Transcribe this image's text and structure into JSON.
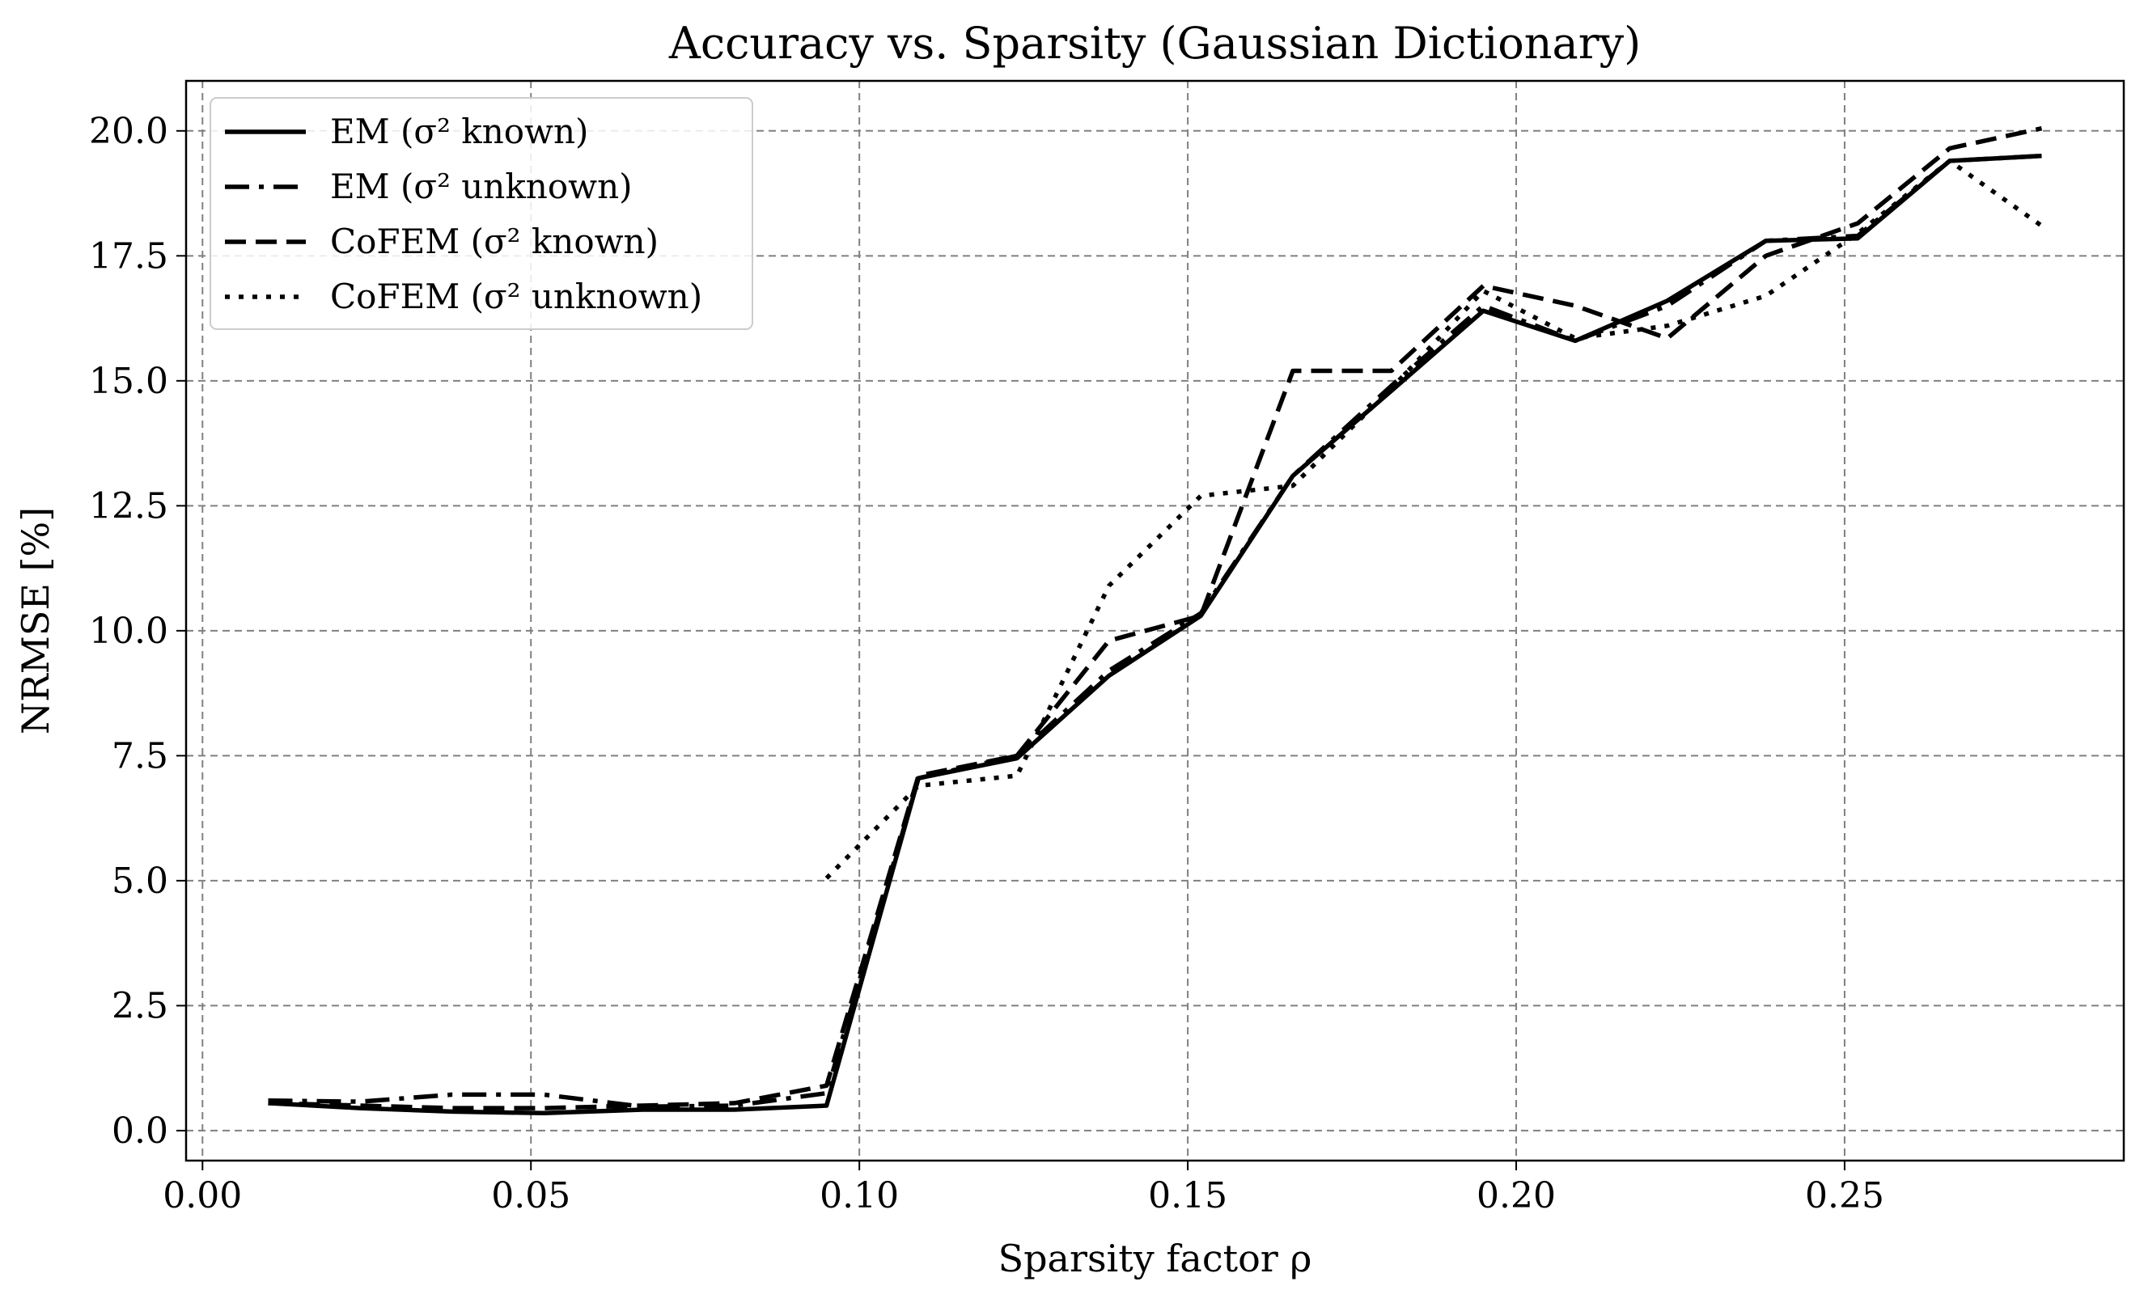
{
  "chart_data": {
    "type": "line",
    "title": "Accuracy vs. Sparsity (Gaussian Dictionary)",
    "xlabel": "Sparsity factor ρ",
    "ylabel": "NRMSE [%]",
    "xlim": [
      -0.0025,
      0.2925
    ],
    "ylim": [
      -0.6,
      21.0
    ],
    "xticks": [
      0.0,
      0.05,
      0.1,
      0.15,
      0.2,
      0.25
    ],
    "xtick_labels": [
      "0.00",
      "0.05",
      "0.10",
      "0.15",
      "0.20",
      "0.25"
    ],
    "yticks": [
      0.0,
      2.5,
      5.0,
      7.5,
      10.0,
      12.5,
      15.0,
      17.5,
      20.0
    ],
    "ytick_labels": [
      "0.0",
      "2.5",
      "5.0",
      "7.5",
      "10.0",
      "12.5",
      "15.0",
      "17.5",
      "20.0"
    ],
    "grid": true,
    "legend_position": "top-left",
    "color": "#000000",
    "series": [
      {
        "name": "EM (σ² known)",
        "style": "solid",
        "x": [
          0.01,
          0.024,
          0.038,
          0.052,
          0.067,
          0.081,
          0.095,
          0.109,
          0.124,
          0.138,
          0.152,
          0.166,
          0.181,
          0.195,
          0.209,
          0.223,
          0.238,
          0.252,
          0.266,
          0.28
        ],
        "y": [
          0.55,
          0.45,
          0.38,
          0.35,
          0.42,
          0.42,
          0.5,
          7.05,
          7.45,
          9.1,
          10.3,
          13.1,
          14.8,
          16.4,
          15.8,
          16.6,
          17.8,
          17.85,
          19.4,
          19.5
        ]
      },
      {
        "name": "EM (σ² unknown)",
        "style": "dashdot",
        "x": [
          0.01,
          0.024,
          0.038,
          0.052,
          0.067,
          0.081,
          0.095,
          0.109,
          0.124,
          0.138,
          0.152,
          0.166,
          0.181,
          0.195,
          0.209,
          0.223,
          0.238,
          0.252,
          0.266,
          0.28
        ],
        "y": [
          0.6,
          0.58,
          0.72,
          0.72,
          0.48,
          0.5,
          0.75,
          7.05,
          7.5,
          9.2,
          10.35,
          13.1,
          14.9,
          16.5,
          15.8,
          16.5,
          17.8,
          17.9,
          19.4,
          19.5
        ]
      },
      {
        "name": "CoFEM (σ² known)",
        "style": "dashed",
        "x": [
          0.01,
          0.024,
          0.038,
          0.052,
          0.067,
          0.081,
          0.095,
          0.109,
          0.124,
          0.138,
          0.152,
          0.166,
          0.181,
          0.195,
          0.209,
          0.223,
          0.238,
          0.252,
          0.266,
          0.28
        ],
        "y": [
          0.55,
          0.5,
          0.45,
          0.45,
          0.5,
          0.55,
          0.9,
          7.1,
          7.5,
          9.8,
          10.3,
          15.2,
          15.2,
          16.9,
          16.5,
          15.85,
          17.5,
          18.15,
          19.65,
          20.05
        ]
      },
      {
        "name": "CoFEM (σ² unknown)",
        "style": "dotted",
        "x": [
          0.095,
          0.109,
          0.124,
          0.138,
          0.152,
          0.166,
          0.181,
          0.195,
          0.209,
          0.223,
          0.238,
          0.252,
          0.266,
          0.28
        ],
        "y": [
          5.05,
          6.9,
          7.1,
          10.9,
          12.7,
          12.9,
          14.85,
          16.8,
          15.85,
          16.1,
          16.7,
          17.95,
          19.4,
          18.1
        ]
      }
    ]
  }
}
